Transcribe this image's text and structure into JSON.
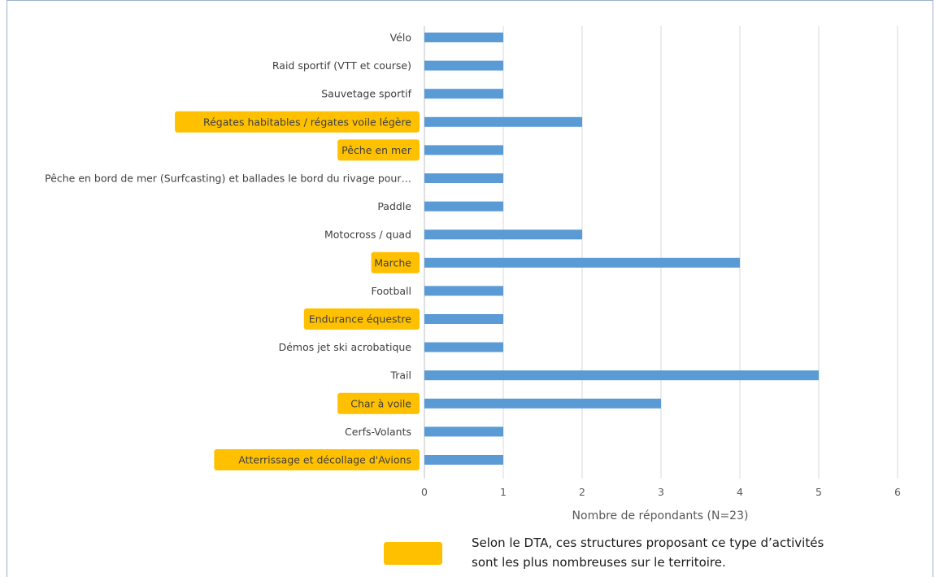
{
  "chart_data": {
    "type": "bar",
    "orientation": "horizontal",
    "categories": [
      "Vélo",
      "Raid sportif (VTT et course)",
      "Sauvetage sportif",
      "Régates habitables / régates voile légère",
      "Pêche en mer",
      "Pêche en bord de mer (Surfcasting) et ballades le bord du rivage pour…",
      "Paddle",
      "Motocross / quad",
      "Marche",
      "Football",
      "Endurance équestre",
      "Démos jet ski acrobatique",
      "Trail",
      "Char à voile",
      "Cerfs-Volants",
      "Atterrissage et décollage d'Avions"
    ],
    "values": [
      1,
      1,
      1,
      2,
      1,
      1,
      1,
      2,
      4,
      1,
      1,
      1,
      5,
      3,
      1,
      1
    ],
    "highlighted": [
      false,
      false,
      false,
      true,
      true,
      false,
      false,
      false,
      true,
      false,
      true,
      false,
      false,
      true,
      false,
      true
    ],
    "xlabel": "Nombre de répondants (N=23)",
    "ylabel": "",
    "xlim": [
      0,
      6
    ],
    "xticks": [
      "0",
      "1",
      "2",
      "3",
      "4",
      "5",
      "6"
    ],
    "grid": true,
    "bar_color": "#5b9bd5",
    "highlight_color": "#ffc000"
  },
  "legend": {
    "text_line1": "Selon le DTA, ces structures proposant ce type d’activités",
    "text_line2": "sont les plus nombreuses sur le territoire."
  }
}
